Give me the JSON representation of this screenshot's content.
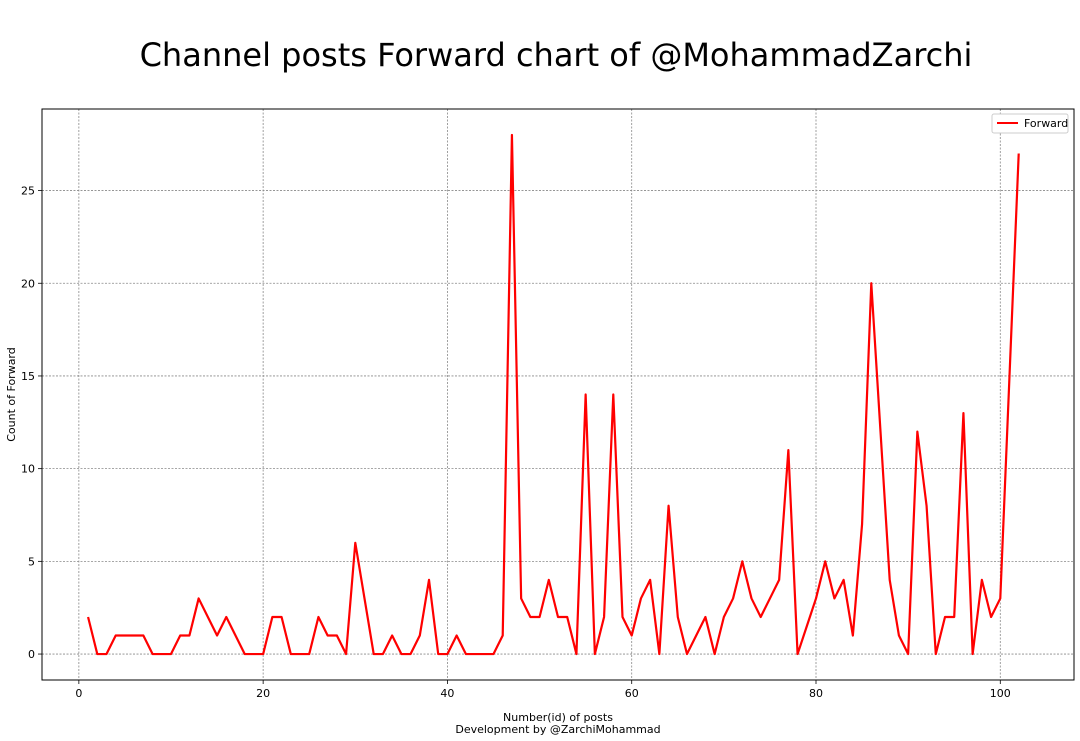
{
  "chart_data": {
    "type": "line",
    "title": "Channel posts Forward chart of @MohammadZarchi",
    "xlabel": "Number(id) of posts",
    "xlabel_sub": "Development by @ZarchiMohammad",
    "ylabel": "Count of Forward",
    "xlim": [
      -4,
      108
    ],
    "ylim": [
      -1.4,
      29.4
    ],
    "xticks": [
      0,
      20,
      40,
      60,
      80,
      100
    ],
    "yticks": [
      0,
      5,
      10,
      15,
      20,
      25
    ],
    "grid": true,
    "legend_position": "top-right",
    "series": [
      {
        "name": "Forward",
        "color": "#ff0000",
        "x": [
          1,
          2,
          3,
          4,
          5,
          6,
          7,
          8,
          9,
          10,
          11,
          12,
          13,
          14,
          15,
          16,
          17,
          18,
          19,
          20,
          21,
          22,
          23,
          24,
          25,
          26,
          27,
          28,
          29,
          30,
          31,
          32,
          33,
          34,
          35,
          36,
          37,
          38,
          39,
          40,
          41,
          42,
          43,
          44,
          45,
          46,
          47,
          48,
          49,
          50,
          51,
          52,
          53,
          54,
          55,
          56,
          57,
          58,
          59,
          60,
          61,
          62,
          63,
          64,
          65,
          66,
          67,
          68,
          69,
          70,
          71,
          72,
          73,
          74,
          75,
          76,
          77,
          78,
          79,
          80,
          81,
          82,
          83,
          84,
          85,
          86,
          87,
          88,
          89,
          90,
          91,
          92,
          93,
          94,
          95,
          96,
          97,
          98,
          99,
          100,
          101,
          102
        ],
        "y": [
          2,
          0,
          0,
          1,
          1,
          1,
          1,
          0,
          0,
          0,
          1,
          1,
          3,
          2,
          1,
          2,
          1,
          0,
          0,
          0,
          2,
          2,
          0,
          0,
          0,
          2,
          1,
          1,
          0,
          6,
          3,
          0,
          0,
          1,
          0,
          0,
          1,
          4,
          0,
          0,
          1,
          0,
          0,
          0,
          0,
          1,
          28,
          3,
          2,
          2,
          4,
          2,
          2,
          0,
          14,
          0,
          2,
          14,
          2,
          1,
          3,
          4,
          0,
          8,
          2,
          0,
          1,
          2,
          0,
          2,
          3,
          5,
          3,
          2,
          3,
          4,
          11,
          0,
          1.5,
          3,
          5,
          3,
          4,
          1,
          7,
          20,
          12,
          4,
          1,
          0,
          12,
          8,
          0,
          2,
          2,
          13,
          0,
          4,
          2,
          3,
          15,
          27
        ]
      }
    ]
  }
}
